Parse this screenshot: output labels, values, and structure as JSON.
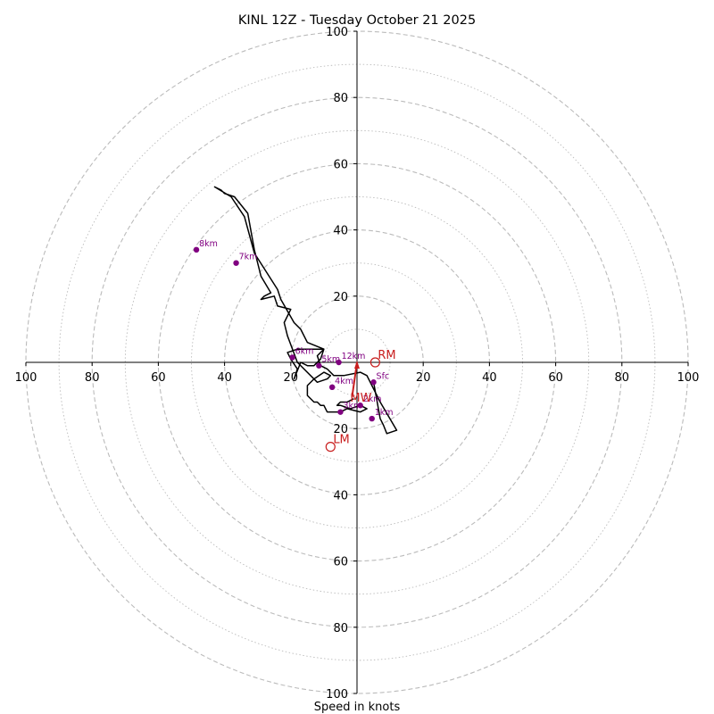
{
  "chart_data": {
    "type": "scatter",
    "subtype": "hodograph",
    "title": "KINL 12Z - Tuesday October 21 2025",
    "xlabel": "Speed in knots",
    "ylabel": "",
    "xlim": [
      -100,
      100
    ],
    "ylim": [
      -100,
      100
    ],
    "ring_major": [
      20,
      40,
      60,
      80,
      100
    ],
    "ring_minor": [
      10,
      30,
      50,
      70,
      90
    ],
    "x_tick_labels": [
      "100",
      "80",
      "60",
      "40",
      "20",
      "20",
      "40",
      "60",
      "80",
      "100"
    ],
    "y_tick_labels": [
      "100",
      "80",
      "60",
      "40",
      "20",
      "20",
      "40",
      "60",
      "80",
      "100"
    ],
    "colors": {
      "trace": "#000000",
      "height": "#800080",
      "motion": "#c81e1e",
      "grid": "#bbbbbb"
    },
    "trace": [
      [
        5,
        -6
      ],
      [
        7,
        -17
      ],
      [
        8,
        -19
      ],
      [
        9,
        -21.5
      ],
      [
        12,
        -20.5
      ],
      [
        7,
        -12
      ],
      [
        3,
        -4
      ],
      [
        1,
        -3
      ],
      [
        -4,
        -4
      ],
      [
        -7,
        -4
      ],
      [
        -9,
        -2
      ],
      [
        -11,
        -1
      ],
      [
        -12,
        2
      ],
      [
        -10,
        4
      ],
      [
        -11,
        1
      ],
      [
        -13,
        -1
      ],
      [
        -14,
        -1
      ],
      [
        -15,
        -1
      ],
      [
        -17,
        0
      ],
      [
        -19,
        -5
      ],
      [
        -18,
        -2
      ],
      [
        -20,
        1
      ],
      [
        -21,
        3
      ],
      [
        -18,
        4
      ],
      [
        -10,
        4
      ],
      [
        -15,
        6
      ],
      [
        -17,
        10
      ],
      [
        -19,
        12
      ],
      [
        -23,
        19
      ],
      [
        -24,
        22
      ],
      [
        -31,
        33
      ],
      [
        -34,
        44
      ],
      [
        -38,
        50
      ],
      [
        -43,
        53
      ],
      [
        -41,
        52
      ],
      [
        -40,
        51
      ],
      [
        -37,
        50
      ],
      [
        -33,
        45
      ],
      [
        -31,
        34
      ],
      [
        -29,
        26
      ],
      [
        -26,
        21
      ],
      [
        -28,
        20
      ],
      [
        -29,
        19
      ],
      [
        -25,
        20
      ],
      [
        -24,
        17
      ],
      [
        -20,
        16
      ],
      [
        -22,
        12
      ],
      [
        -21,
        8
      ],
      [
        -18,
        0
      ],
      [
        -12,
        -6
      ],
      [
        -9,
        -5
      ],
      [
        -8,
        -4
      ],
      [
        -10,
        -3
      ],
      [
        -13,
        -5
      ],
      [
        -15,
        -7
      ],
      [
        -15,
        -10
      ],
      [
        -13,
        -12
      ],
      [
        -12,
        -12
      ],
      [
        -11,
        -13
      ],
      [
        -10,
        -13
      ],
      [
        -9,
        -15
      ],
      [
        -5,
        -15
      ],
      [
        -3,
        -14
      ],
      [
        1,
        -15
      ],
      [
        3,
        -14
      ],
      [
        1,
        -13
      ],
      [
        -2,
        -14
      ],
      [
        -5,
        -13
      ],
      [
        -6,
        -13
      ],
      [
        -5,
        -12
      ],
      [
        -3,
        -12
      ],
      [
        -1,
        -11
      ]
    ],
    "height_markers": [
      {
        "label": "Sfc",
        "u": 5,
        "v": -6
      },
      {
        "label": "1km",
        "u": 4.5,
        "v": -17
      },
      {
        "label": "2km",
        "u": 1,
        "v": -13
      },
      {
        "label": "3km",
        "u": -5,
        "v": -15
      },
      {
        "label": "4km",
        "u": -7.5,
        "v": -7.5
      },
      {
        "label": "5km",
        "u": -11.5,
        "v": -1
      },
      {
        "label": "6km",
        "u": -19.5,
        "v": 1.5
      },
      {
        "label": "7km",
        "u": -36.5,
        "v": 30
      },
      {
        "label": "8km",
        "u": -48.5,
        "v": 34
      },
      {
        "label": "12km",
        "u": -5.5,
        "v": 0
      }
    ],
    "storm_motion": [
      {
        "label": "RM",
        "u": 5.5,
        "v": 0
      },
      {
        "label": "LM",
        "u": -8,
        "v": -25.5
      },
      {
        "label": "MW",
        "u": -1.5,
        "v": -10.5
      }
    ],
    "shear_vector": {
      "from": [
        -1.5,
        -10.5
      ],
      "to": [
        0,
        0
      ]
    }
  }
}
